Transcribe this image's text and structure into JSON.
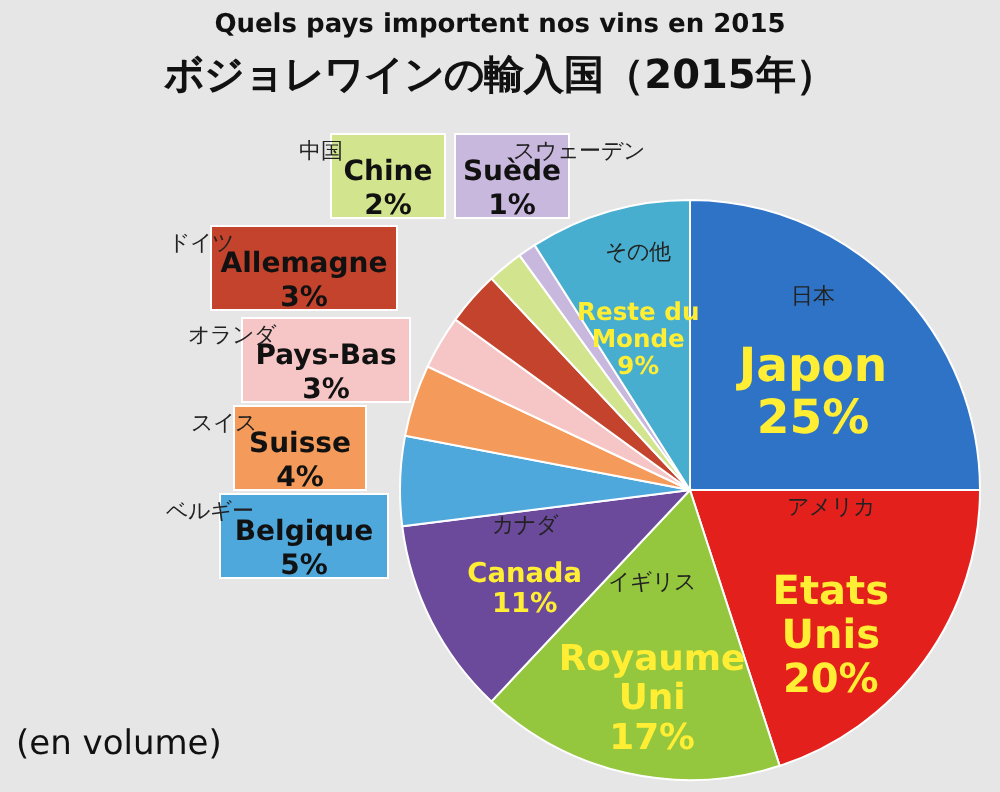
{
  "chart_data": {
    "type": "pie",
    "title": "Quels pays importent nos vins en 2015",
    "subtitle": "ボジョレワインの輸入国（2015年）",
    "categories": [
      "Japon",
      "Etats Unis",
      "Royaume Uni",
      "Canada",
      "Belgique",
      "Suisse",
      "Pays-Bas",
      "Allemagne",
      "Chine",
      "Suède",
      "Reste du Monde"
    ],
    "values": [
      25,
      20,
      17,
      11,
      5,
      4,
      3,
      3,
      2,
      1,
      9
    ],
    "value_labels": [
      "25%",
      "20%",
      "17%",
      "11%",
      "5%",
      "4%",
      "3%",
      "3%",
      "2%",
      "1%",
      "9%"
    ],
    "colors": [
      "#2f73c6",
      "#e4201c",
      "#94c63e",
      "#6b4a9c",
      "#4fa8dc",
      "#f49a5a",
      "#f6c6c6",
      "#c4432c",
      "#d2e48e",
      "#c9b8de",
      "#48aecf"
    ],
    "annotations": [
      {
        "text": "日本",
        "x": "Japon"
      },
      {
        "text": "アメリカ",
        "x": "Etats Unis"
      },
      {
        "text": "イギリス",
        "x": "Royaume Uni"
      },
      {
        "text": "カナダ",
        "x": "Canada"
      },
      {
        "text": "ベルギー",
        "x": "Belgique"
      },
      {
        "text": "スイス",
        "x": "Suisse"
      },
      {
        "text": "オランダ",
        "x": "Pays-Bas"
      },
      {
        "text": "ドイツ",
        "x": "Allemagne"
      },
      {
        "text": "中国",
        "x": "Chine"
      },
      {
        "text": "スウェーデン",
        "x": "Suède"
      },
      {
        "text": "その他",
        "x": "Reste du Monde"
      },
      "(en volume)"
    ]
  }
}
